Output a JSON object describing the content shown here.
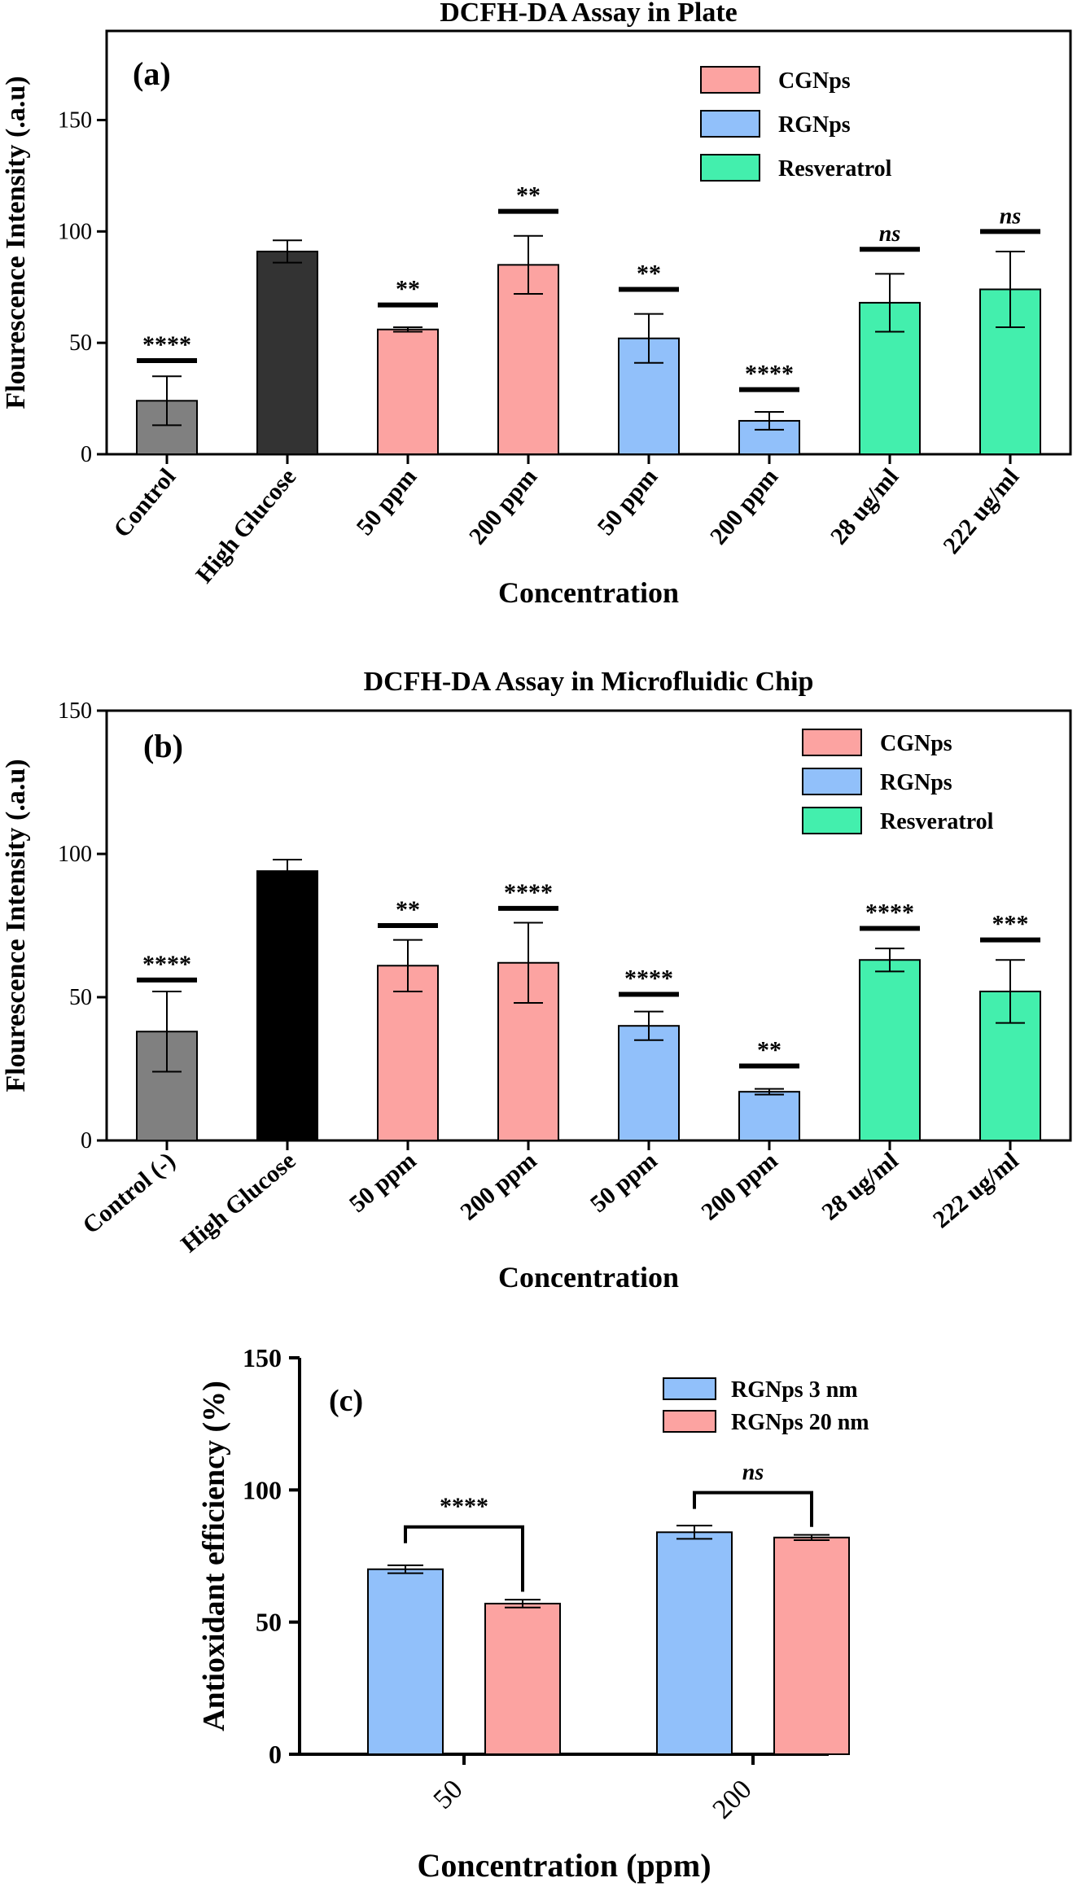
{
  "colors": {
    "control": "#808080",
    "high_glucose_a": "#333333",
    "high_glucose_b": "#000000",
    "cgnps": "#FCA3A1",
    "rgnps": "#91C0FA",
    "resveratrol": "#43EFAD",
    "axis": "#000000"
  },
  "chart_data": [
    {
      "id": "a",
      "type": "bar",
      "title": "DCFH-DA Assay in Plate",
      "panel_label": "(a)",
      "xlabel": "Concentration",
      "ylabel": "Flourescence Intensity (.a.u)",
      "ylim": [
        0,
        190
      ],
      "yticks": [
        0,
        50,
        100,
        150
      ],
      "categories": [
        "Control",
        "High Glucose",
        "50 ppm",
        "200 ppm",
        "50 ppm",
        "200 ppm",
        "28 ug/ml",
        "222 ug/ml"
      ],
      "values": [
        24,
        91,
        56,
        85,
        52,
        15,
        68,
        74
      ],
      "errors": [
        11,
        5,
        1,
        13,
        11,
        4,
        13,
        17
      ],
      "significance": [
        "****",
        "",
        "**",
        "**",
        "**",
        "****",
        "ns",
        "ns"
      ],
      "sig_values": [
        42,
        null,
        67,
        109,
        74,
        29,
        92,
        100
      ],
      "groups": [
        "control",
        "high_glucose_a",
        "cgnps",
        "cgnps",
        "rgnps",
        "rgnps",
        "resveratrol",
        "resveratrol"
      ],
      "legend": [
        {
          "label": "CGNps",
          "group": "cgnps"
        },
        {
          "label": "RGNps",
          "group": "rgnps"
        },
        {
          "label": "Resveratrol",
          "group": "resveratrol"
        }
      ],
      "legend_position": "top-right"
    },
    {
      "id": "b",
      "type": "bar",
      "title": "DCFH-DA Assay in Microfluidic Chip",
      "panel_label": "(b)",
      "xlabel": "Concentration",
      "ylabel": "Flourescence Intensity (.a.u)",
      "ylim": [
        0,
        150
      ],
      "yticks": [
        0,
        50,
        100,
        150
      ],
      "categories": [
        "Control (-)",
        "High Glucose",
        "50 ppm",
        "200 ppm",
        "50 ppm",
        "200 ppm",
        "28 ug/ml",
        "222 ug/ml"
      ],
      "values": [
        38,
        94,
        61,
        62,
        40,
        17,
        63,
        52
      ],
      "errors": [
        14,
        4,
        9,
        14,
        5,
        1,
        4,
        11
      ],
      "significance": [
        "****",
        "",
        "**",
        "****",
        "****",
        "**",
        "****",
        "***"
      ],
      "sig_values": [
        56,
        null,
        75,
        81,
        51,
        26,
        74,
        70
      ],
      "groups": [
        "control",
        "high_glucose_b",
        "cgnps",
        "cgnps",
        "rgnps",
        "rgnps",
        "resveratrol",
        "resveratrol"
      ],
      "legend": [
        {
          "label": "CGNps",
          "group": "cgnps"
        },
        {
          "label": "RGNps",
          "group": "rgnps"
        },
        {
          "label": "Resveratrol",
          "group": "resveratrol"
        }
      ],
      "legend_position": "top-right"
    },
    {
      "id": "c",
      "type": "bar",
      "panel_label": "(c)",
      "xlabel": "Concentration (ppm)",
      "ylabel": "Antioxidant efficiency (%)",
      "ylim": [
        0,
        150
      ],
      "yticks": [
        0,
        50,
        100,
        150
      ],
      "categories": [
        "50",
        "200"
      ],
      "series": [
        {
          "name": "RGNps 3 nm",
          "group": "rgnps",
          "values": [
            70,
            84
          ],
          "errors": [
            1.5,
            2.5
          ]
        },
        {
          "name": "RGNps 20 nm",
          "group": "cgnps",
          "values": [
            57,
            82
          ],
          "errors": [
            1.5,
            1
          ]
        }
      ],
      "comparisons": [
        {
          "label": "****",
          "category": 0,
          "value": 86
        },
        {
          "label": "ns",
          "category": 1,
          "value": 99
        }
      ],
      "legend_position": "top-right"
    }
  ]
}
